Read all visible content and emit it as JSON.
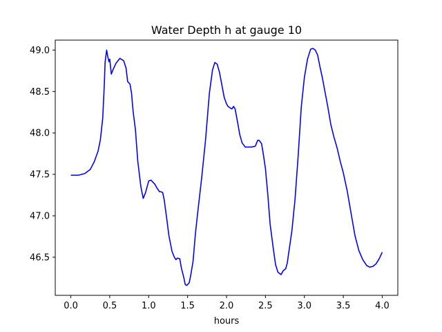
{
  "chart_data": {
    "type": "line",
    "title": "Water Depth h at gauge 10",
    "xlabel": "hours",
    "ylabel": "",
    "xlim": [
      -0.2,
      4.2
    ],
    "ylim": [
      46.04,
      49.12
    ],
    "xticks": [
      0.0,
      0.5,
      1.0,
      1.5,
      2.0,
      2.5,
      3.0,
      3.5,
      4.0
    ],
    "xtick_labels": [
      "0.0",
      "0.5",
      "1.0",
      "1.5",
      "2.0",
      "2.5",
      "3.0",
      "3.5",
      "4.0"
    ],
    "yticks": [
      46.5,
      47.0,
      47.5,
      48.0,
      48.5,
      49.0
    ],
    "ytick_labels": [
      "46.5",
      "47.0",
      "47.5",
      "48.0",
      "48.5",
      "49.0"
    ],
    "grid": false,
    "legend": "none",
    "series": [
      {
        "color": "#0000ff",
        "x": [
          0.0,
          0.1,
          0.18,
          0.25,
          0.3,
          0.35,
          0.38,
          0.41,
          0.43,
          0.44,
          0.46,
          0.475,
          0.49,
          0.5,
          0.52,
          0.55,
          0.58,
          0.63,
          0.68,
          0.71,
          0.73,
          0.76,
          0.78,
          0.8,
          0.83,
          0.86,
          0.9,
          0.93,
          0.96,
          1.0,
          1.03,
          1.06,
          1.08,
          1.11,
          1.14,
          1.16,
          1.18,
          1.2,
          1.23,
          1.26,
          1.3,
          1.33,
          1.35,
          1.37,
          1.4,
          1.42,
          1.45,
          1.47,
          1.49,
          1.52,
          1.54,
          1.57,
          1.6,
          1.63,
          1.68,
          1.73,
          1.78,
          1.82,
          1.85,
          1.88,
          1.91,
          1.94,
          1.97,
          2.0,
          2.02,
          2.05,
          2.07,
          2.09,
          2.11,
          2.14,
          2.17,
          2.2,
          2.24,
          2.28,
          2.32,
          2.37,
          2.4,
          2.42,
          2.45,
          2.47,
          2.5,
          2.53,
          2.56,
          2.6,
          2.63,
          2.66,
          2.7,
          2.73,
          2.76,
          2.78,
          2.8,
          2.84,
          2.88,
          2.92,
          2.96,
          3.0,
          3.04,
          3.08,
          3.11,
          3.14,
          3.17,
          3.2,
          3.23,
          3.26,
          3.3,
          3.34,
          3.38,
          3.42,
          3.46,
          3.5,
          3.55,
          3.6,
          3.65,
          3.7,
          3.75,
          3.8,
          3.84,
          3.88,
          3.92,
          3.96,
          4.0
        ],
        "y": [
          47.49,
          47.49,
          47.51,
          47.56,
          47.65,
          47.78,
          47.92,
          48.18,
          48.58,
          48.85,
          49.0,
          48.92,
          48.86,
          48.89,
          48.71,
          48.78,
          48.84,
          48.9,
          48.87,
          48.78,
          48.62,
          48.59,
          48.48,
          48.26,
          48.04,
          47.66,
          47.35,
          47.21,
          47.28,
          47.42,
          47.43,
          47.4,
          47.38,
          47.33,
          47.29,
          47.29,
          47.28,
          47.19,
          46.98,
          46.76,
          46.57,
          46.5,
          46.47,
          46.49,
          46.48,
          46.37,
          46.26,
          46.17,
          46.16,
          46.19,
          46.28,
          46.45,
          46.78,
          47.04,
          47.45,
          47.91,
          48.48,
          48.76,
          48.85,
          48.83,
          48.73,
          48.58,
          48.43,
          48.35,
          48.32,
          48.3,
          48.29,
          48.32,
          48.29,
          48.14,
          47.98,
          47.88,
          47.83,
          47.83,
          47.83,
          47.84,
          47.91,
          47.91,
          47.87,
          47.76,
          47.57,
          47.26,
          46.9,
          46.61,
          46.41,
          46.32,
          46.29,
          46.34,
          46.36,
          46.43,
          46.56,
          46.82,
          47.2,
          47.72,
          48.31,
          48.67,
          48.89,
          49.01,
          49.02,
          49.0,
          48.94,
          48.8,
          48.67,
          48.52,
          48.32,
          48.1,
          47.95,
          47.82,
          47.66,
          47.52,
          47.3,
          47.03,
          46.76,
          46.58,
          46.47,
          46.4,
          46.38,
          46.39,
          46.42,
          46.48,
          46.56
        ]
      }
    ]
  }
}
